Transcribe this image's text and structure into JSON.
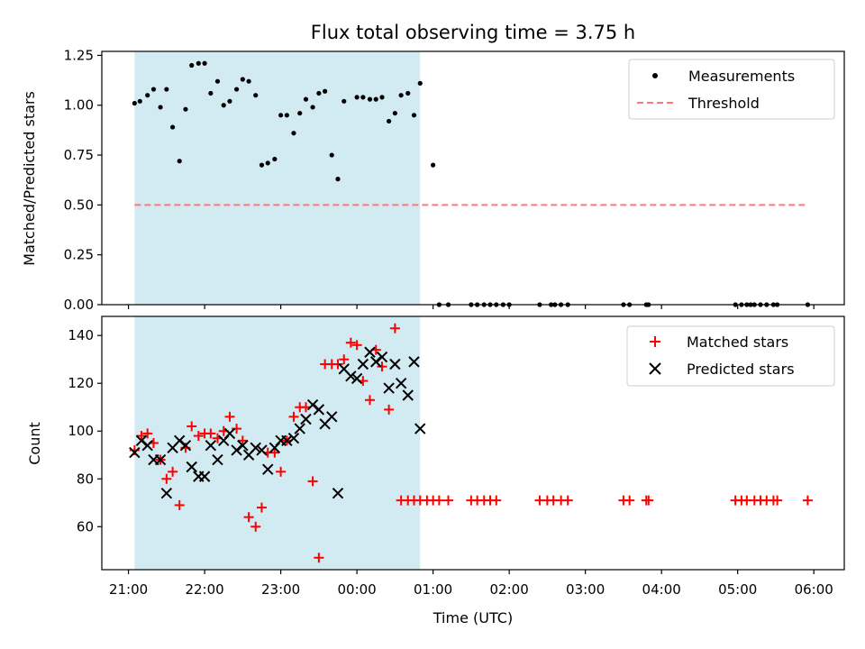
{
  "chart_data": [
    {
      "type": "scatter",
      "title": "Flux total observing time = 3.75 h",
      "xlabel": "",
      "ylabel": "Matched/Predicted stars",
      "xlim": [
        20.65,
        30.4
      ],
      "ylim": [
        0,
        1.27
      ],
      "yticks": [
        0,
        0.25,
        0.5,
        0.75,
        1.0,
        1.25
      ],
      "ytick_labels": [
        "0.00",
        "0.25",
        "0.50",
        "0.75",
        "1.00",
        "1.25"
      ],
      "shaded_region": [
        21.08,
        24.83
      ],
      "shaded_color": "#add8e6",
      "legend_position": "top-right",
      "series": [
        {
          "name": "Measurements",
          "marker": "dot",
          "color": "#000000",
          "x": [
            21.08,
            21.15,
            21.25,
            21.33,
            21.42,
            21.5,
            21.58,
            21.67,
            21.75,
            21.83,
            21.92,
            22.0,
            22.08,
            22.17,
            22.25,
            22.33,
            22.42,
            22.5,
            22.58,
            22.67,
            22.75,
            22.83,
            22.92,
            23.0,
            23.08,
            23.17,
            23.25,
            23.33,
            23.42,
            23.5,
            23.58,
            23.67,
            23.75,
            23.83,
            24.0,
            24.08,
            24.17,
            24.25,
            24.33,
            24.42,
            24.5,
            24.58,
            24.67,
            24.75,
            24.83,
            25.0,
            25.08,
            25.2,
            25.5,
            25.58,
            25.67,
            25.75,
            25.83,
            25.92,
            26.0,
            26.4,
            26.55,
            26.6,
            26.68,
            26.77,
            27.5,
            27.58,
            27.8,
            27.83,
            28.97,
            29.05,
            29.12,
            29.17,
            29.22,
            29.3,
            29.38,
            29.47,
            29.52,
            29.92
          ],
          "y": [
            1.01,
            1.02,
            1.05,
            1.08,
            0.99,
            1.08,
            0.89,
            0.72,
            0.98,
            1.2,
            1.21,
            1.21,
            1.06,
            1.12,
            1.0,
            1.02,
            1.08,
            1.13,
            1.12,
            1.05,
            0.7,
            0.71,
            0.73,
            0.95,
            0.95,
            0.86,
            0.96,
            1.03,
            0.99,
            1.06,
            1.07,
            0.75,
            0.63,
            1.02,
            1.04,
            1.04,
            1.03,
            1.03,
            1.04,
            0.92,
            0.96,
            1.05,
            1.06,
            0.95,
            1.11,
            0.7,
            0.0,
            0.0,
            0.0,
            0.0,
            0.0,
            0.0,
            0.0,
            0.0,
            0.0,
            0.0,
            0.0,
            0.0,
            0.0,
            0.0,
            0.0,
            0.0,
            0.0,
            0.0,
            0.0,
            0.0,
            0.0,
            0.0,
            0.0,
            0.0,
            0.0,
            0.0,
            0.0,
            0.0
          ]
        },
        {
          "name": "Threshold",
          "type": "line",
          "style": "dashed",
          "color": "#ff7777",
          "x": [
            21.08,
            29.92
          ],
          "y": [
            0.5,
            0.5
          ]
        }
      ]
    },
    {
      "type": "scatter",
      "title": "",
      "xlabel": "Time (UTC)",
      "ylabel": "Count",
      "xlim": [
        20.65,
        30.4
      ],
      "ylim": [
        42,
        148
      ],
      "yticks": [
        60,
        80,
        100,
        120,
        140
      ],
      "ytick_labels": [
        "60",
        "80",
        "100",
        "120",
        "140"
      ],
      "xticks": [
        21,
        22,
        23,
        24,
        25,
        26,
        27,
        28,
        29,
        30
      ],
      "xtick_labels": [
        "21:00",
        "22:00",
        "23:00",
        "00:00",
        "01:00",
        "02:00",
        "03:00",
        "04:00",
        "05:00",
        "06:00"
      ],
      "shaded_region": [
        21.08,
        24.83
      ],
      "shaded_color": "#add8e6",
      "legend_position": "top-right",
      "series": [
        {
          "name": "Matched stars",
          "marker": "plus",
          "color": "#ff0000",
          "x": [
            21.08,
            21.17,
            21.25,
            21.33,
            21.42,
            21.5,
            21.58,
            21.67,
            21.75,
            21.83,
            21.92,
            22.0,
            22.08,
            22.17,
            22.25,
            22.33,
            22.42,
            22.5,
            22.58,
            22.67,
            22.75,
            22.83,
            22.92,
            23.0,
            23.08,
            23.17,
            23.25,
            23.33,
            23.42,
            23.5,
            23.58,
            23.67,
            23.75,
            23.83,
            23.92,
            24.0,
            24.08,
            24.17,
            24.25,
            24.33,
            24.42,
            24.5,
            24.58,
            24.67,
            24.75,
            24.83,
            24.92,
            25.0,
            25.08,
            25.2,
            25.5,
            25.58,
            25.67,
            25.75,
            25.83,
            26.4,
            26.5,
            26.58,
            26.68,
            26.77,
            27.5,
            27.58,
            27.8,
            27.83,
            28.97,
            29.05,
            29.12,
            29.22,
            29.3,
            29.38,
            29.47,
            29.52,
            29.92
          ],
          "y": [
            92,
            98,
            99,
            95,
            88,
            80,
            83,
            69,
            93,
            102,
            98,
            99,
            99,
            97,
            100,
            106,
            101,
            96,
            64,
            60,
            68,
            91,
            91,
            83,
            96,
            106,
            110,
            110,
            79,
            47,
            128,
            128,
            128,
            130,
            137,
            136,
            121,
            113,
            134,
            127,
            109,
            143,
            71,
            71,
            71,
            71,
            71,
            71,
            71,
            71,
            71,
            71,
            71,
            71,
            71,
            71,
            71,
            71,
            71,
            71,
            71,
            71,
            71,
            71,
            71,
            71,
            71,
            71,
            71,
            71,
            71,
            71,
            71
          ],
          "x_note": "values listed in chronological order"
        },
        {
          "name": "Predicted stars",
          "marker": "x",
          "color": "#000000",
          "x": [
            21.08,
            21.17,
            21.25,
            21.33,
            21.42,
            21.5,
            21.58,
            21.67,
            21.75,
            21.83,
            21.92,
            22.0,
            22.08,
            22.17,
            22.25,
            22.33,
            22.42,
            22.5,
            22.58,
            22.67,
            22.75,
            22.83,
            22.92,
            23.0,
            23.08,
            23.17,
            23.25,
            23.33,
            23.42,
            23.5,
            23.58,
            23.67,
            23.75,
            23.83,
            23.92,
            24.0,
            24.08,
            24.17,
            24.25,
            24.33,
            24.42,
            24.5,
            24.58,
            24.67,
            24.75,
            24.83
          ],
          "y": [
            91,
            96,
            94,
            88,
            88,
            74,
            93,
            96,
            94,
            85,
            81,
            81,
            94,
            88,
            96,
            99,
            92,
            94,
            90,
            93,
            92,
            84,
            93,
            96,
            96,
            97,
            101,
            105,
            111,
            109,
            103,
            106,
            74,
            126,
            123,
            122,
            128,
            133,
            129,
            131,
            118,
            128,
            120,
            115,
            129,
            101
          ]
        }
      ]
    }
  ],
  "legend_top": {
    "measurements": "Measurements",
    "threshold": "Threshold"
  },
  "legend_bottom": {
    "matched": "Matched stars",
    "predicted": "Predicted stars"
  }
}
